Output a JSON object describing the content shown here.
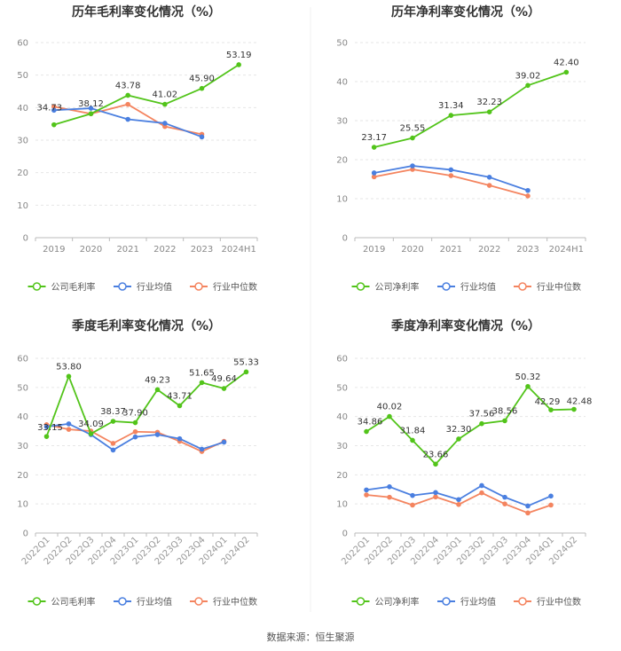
{
  "colors": {
    "company": "#52c41a",
    "industry_avg": "#4a7fe0",
    "industry_median": "#f4845f"
  },
  "footer": {
    "source": "数据来源：恒生聚源"
  },
  "chart_data": [
    {
      "type": "line",
      "title": "历年毛利率变化情况（%）",
      "categories": [
        "2019",
        "2020",
        "2021",
        "2022",
        "2023",
        "2024H1"
      ],
      "ylim": [
        0,
        60
      ],
      "yticks": [
        0,
        10,
        20,
        30,
        40,
        50,
        60
      ],
      "legend": "bottom",
      "series": [
        {
          "name": "公司毛利率",
          "key": "company",
          "values": [
            34.73,
            38.12,
            43.78,
            41.02,
            45.9,
            53.19
          ],
          "labels": [
            "34.73",
            "38.12",
            "43.78",
            "41.02",
            "45.90",
            "53.19"
          ]
        },
        {
          "name": "行业均值",
          "key": "industry_avg",
          "values": [
            39.2,
            39.8,
            36.4,
            35.2,
            31.0,
            null
          ]
        },
        {
          "name": "行业中位数",
          "key": "industry_median",
          "values": [
            40.3,
            38.1,
            41.0,
            34.2,
            31.8,
            null
          ]
        }
      ]
    },
    {
      "type": "line",
      "title": "历年净利率变化情况（%）",
      "categories": [
        "2019",
        "2020",
        "2021",
        "2022",
        "2023",
        "2024H1"
      ],
      "ylim": [
        0,
        50
      ],
      "yticks": [
        0,
        10,
        20,
        30,
        40,
        50
      ],
      "legend": "bottom",
      "series": [
        {
          "name": "公司净利率",
          "key": "company",
          "values": [
            23.17,
            25.55,
            31.34,
            32.23,
            39.02,
            42.4
          ],
          "labels": [
            "23.17",
            "25.55",
            "31.34",
            "32.23",
            "39.02",
            "42.40"
          ]
        },
        {
          "name": "行业均值",
          "key": "industry_avg",
          "values": [
            16.6,
            18.4,
            17.4,
            15.5,
            12.1,
            null
          ]
        },
        {
          "name": "行业中位数",
          "key": "industry_median",
          "values": [
            15.6,
            17.5,
            15.9,
            13.4,
            10.7,
            null
          ]
        }
      ]
    },
    {
      "type": "line",
      "title": "季度毛利率变化情况（%）",
      "categories": [
        "2022Q1",
        "2022Q2",
        "2022Q3",
        "2022Q4",
        "2023Q1",
        "2023Q2",
        "2023Q3",
        "2023Q4",
        "2024Q1",
        "2024Q2"
      ],
      "ylim": [
        0,
        60
      ],
      "yticks": [
        0,
        10,
        20,
        30,
        40,
        50,
        60
      ],
      "legend": "bottom",
      "series": [
        {
          "name": "公司毛利率",
          "key": "company",
          "values": [
            33.15,
            53.8,
            34.09,
            38.37,
            37.9,
            49.23,
            43.71,
            51.65,
            49.64,
            55.33
          ],
          "labels": [
            "33.15",
            "53.80",
            "34.09",
            "38.37",
            "37.90",
            "49.23",
            "43.71",
            "51.65",
            "49.64",
            "55.33"
          ]
        },
        {
          "name": "行业均值",
          "key": "industry_avg",
          "values": [
            36.5,
            37.5,
            33.8,
            28.5,
            33.0,
            33.8,
            32.4,
            28.8,
            31.2,
            null
          ]
        },
        {
          "name": "行业中位数",
          "key": "industry_median",
          "values": [
            37.2,
            35.6,
            35.0,
            30.8,
            34.8,
            34.6,
            31.5,
            28.0,
            31.5,
            null
          ]
        }
      ]
    },
    {
      "type": "line",
      "title": "季度净利率变化情况（%）",
      "categories": [
        "2022Q1",
        "2022Q2",
        "2022Q3",
        "2022Q4",
        "2023Q1",
        "2023Q2",
        "2023Q3",
        "2023Q4",
        "2024Q1",
        "2024Q2"
      ],
      "ylim": [
        0,
        60
      ],
      "yticks": [
        0,
        10,
        20,
        30,
        40,
        50,
        60
      ],
      "legend": "bottom",
      "series": [
        {
          "name": "公司净利率",
          "key": "company",
          "values": [
            34.86,
            40.02,
            31.84,
            23.66,
            32.3,
            37.56,
            38.56,
            50.32,
            42.29,
            42.48
          ],
          "labels": [
            "34.86",
            "40.02",
            "31.84",
            "23.66",
            "32.30",
            "37.56",
            "38.56",
            "50.32",
            "42.29",
            "42.48"
          ]
        },
        {
          "name": "行业均值",
          "key": "industry_avg",
          "values": [
            14.8,
            15.9,
            12.9,
            13.9,
            11.5,
            16.3,
            12.3,
            9.3,
            12.7,
            null
          ]
        },
        {
          "name": "行业中位数",
          "key": "industry_median",
          "values": [
            13.1,
            12.3,
            9.6,
            12.4,
            9.8,
            13.8,
            10.0,
            6.9,
            9.6,
            null
          ]
        }
      ]
    }
  ]
}
